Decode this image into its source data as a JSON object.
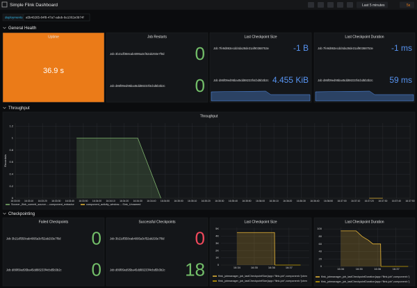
{
  "header": {
    "title": "Simple Flink Dashboard",
    "time_range": "Last 5 minutes",
    "refresh": "5s"
  },
  "variables": [
    {
      "label": "deployments",
      "value": "a5b40265-84f8-47a7-adeb-6e1002e0b74f"
    }
  ],
  "rows": [
    "General Health",
    "Throughput",
    "Checkpointing"
  ],
  "stat_panels": [
    {
      "title": "Uptime",
      "value": "36.9 s"
    },
    {
      "title": "Job Restarts",
      "items": [
        {
          "label": "Job 3b21df358cab4095a3cf52ab293e7f0d",
          "value": 0,
          "color": "#73bf69"
        },
        {
          "label": "Job d86f09ed95ba45dd88233f4cbd5b3b2c",
          "value": 0,
          "color": "#73bf69"
        }
      ]
    },
    {
      "title": "Last Checkpoint Size",
      "items": [
        {
          "label": "Job 7fe9d863ecdd4da28de31af90368753e",
          "value": "-1 B",
          "color": "#5794f2"
        },
        {
          "label": "Job d86f09ed95ba45dd88233f4cbd5b3b2c",
          "value": "4.455 KiB",
          "color": "#5794f2"
        }
      ]
    },
    {
      "title": "Last Checkpoint Duration",
      "items": [
        {
          "label": "Job 7fe9d863ecdd4da28de31af90368753e",
          "value": "-1 ms",
          "color": "#5794f2"
        },
        {
          "label": "Job d86f09ed95ba45dd88233f4cbd5b3b2c",
          "value": "59 ms",
          "color": "#5794f2"
        }
      ]
    },
    {
      "title": "Failed Checkpoints",
      "items": [
        {
          "label": "Job 3b21df358cab4095a3cf52ab293e7f0d",
          "value": 0,
          "color": "#73bf69"
        },
        {
          "label": "Job d86f09ed95ba45dd88233f4cbd5b3b2c",
          "value": 0,
          "color": "#73bf69"
        }
      ]
    },
    {
      "title": "Successful Checkpoints",
      "items": [
        {
          "label": "Job 3b21df358cab4095a3cf52ab293e7f0d",
          "value": 0,
          "color": "#f2495c"
        },
        {
          "label": "Job d86f09ed95ba45dd88233f4cbd5b3b2c",
          "value": 18,
          "color": "#73bf69"
        }
      ]
    }
  ],
  "chart_data": [
    {
      "type": "line",
      "title": "Throughput",
      "y_label": "Records/s",
      "grid": true,
      "xlim": [
        "16:33:00",
        "16:37:50"
      ],
      "xticks": [
        "16:33:00",
        "16:33:10",
        "16:33:20",
        "16:33:30",
        "16:33:40",
        "16:33:50",
        "16:34:00",
        "16:34:10",
        "16:34:20",
        "16:34:30",
        "16:34:40",
        "16:34:50",
        "16:35:00",
        "16:35:10",
        "16:35:20",
        "16:35:30",
        "16:35:40",
        "16:35:50",
        "16:36:00",
        "16:36:10",
        "16:36:20",
        "16:36:30",
        "16:36:40",
        "16:36:50",
        "16:37:00",
        "16:37:10",
        "16:37:20",
        "16:37:30",
        "16:37:40",
        "16:37:50"
      ],
      "ylim": [
        0,
        1.25
      ],
      "yticks": [
        0,
        0.2,
        0.4,
        0.6,
        0.8,
        1,
        1.2
      ],
      "series": [
        {
          "name": "Source:_flink_commit_source.....component_extractor",
          "color": "#7eb26d",
          "x": [
            "16:33:45",
            "16:34:30",
            "16:34:47"
          ],
          "values": [
            1,
            1,
            0
          ]
        },
        {
          "name": "component_activity_window.....Sink_Unnamed",
          "color": "#eab839",
          "x": [
            "16:37:20",
            "16:37:30"
          ],
          "values": [
            0,
            0
          ]
        }
      ]
    },
    {
      "type": "line",
      "title": "Last Checkpoint Size",
      "grid": true,
      "xlim": [
        "16:33:05",
        "16:38:10"
      ],
      "xticks": [
        "16:34",
        "16:35",
        "16:36",
        "16:37"
      ],
      "ylim": [
        0,
        5200
      ],
      "yticks": [
        0,
        {
          "value": 1000,
          "label": "1K"
        },
        {
          "value": 2000,
          "label": "2K"
        },
        {
          "value": 3000,
          "label": "3K"
        },
        {
          "value": 4000,
          "label": "4K"
        },
        {
          "value": 5000,
          "label": "5K"
        }
      ],
      "series": [
        {
          "name": "flink_jobmanager_job_lastCheckpointSize{app=\"flink-job\",component=\"jobm",
          "color": "#eab839",
          "x": [
            "16:34:00",
            "16:36:10",
            "16:36:11"
          ],
          "values": [
            4500,
            4500,
            0
          ]
        },
        {
          "name": "flink_jobmanager_job_lastCheckpointSize{app=\"flink-job\",component=\"jobm",
          "color": "#cca300",
          "x": [
            "16:36:11",
            "16:37:40"
          ],
          "values": [
            0,
            0
          ]
        }
      ]
    },
    {
      "type": "line",
      "title": "Last Checkpoint Duration",
      "grid": true,
      "xlim": [
        "16:33:05",
        "16:37:55"
      ],
      "xticks": [
        "16:34",
        "16:35",
        "16:36",
        "16:37"
      ],
      "ylim": [
        0,
        104
      ],
      "yticks": [
        0,
        20,
        40,
        60,
        80,
        100
      ],
      "series": [
        {
          "name": "flink_jobmanager_job_lastCheckpointDuration{app=\"flink-job\",component=\"j",
          "color": "#eab839",
          "x": [
            "16:34:00",
            "16:34:50",
            "16:35:10",
            "16:35:30",
            "16:35:45",
            "16:36:10",
            "16:36:11"
          ],
          "values": [
            95,
            95,
            80,
            70,
            60,
            60,
            0
          ]
        },
        {
          "name": "flink_jobmanager_job_lastCheckpointDuration{app=\"flink-job\",component=\"j",
          "color": "#cca300",
          "x": [
            "16:36:11",
            "16:37:40"
          ],
          "values": [
            0,
            0
          ]
        }
      ]
    }
  ]
}
